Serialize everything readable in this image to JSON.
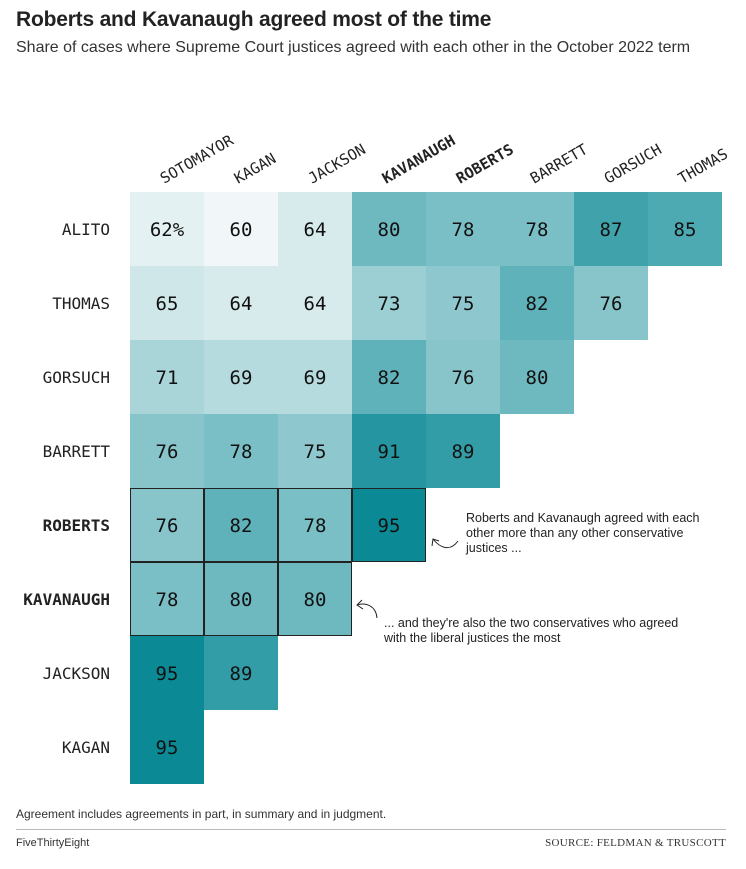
{
  "header": {
    "title": "Roberts and Kavanaugh agreed most of the time",
    "subtitle": "Share of cases where Supreme Court justices agreed with each other in the October 2022 term"
  },
  "chart_data": {
    "type": "heatmap",
    "columns": [
      "SOTOMAYOR",
      "KAGAN",
      "JACKSON",
      "KAVANAUGH",
      "ROBERTS",
      "BARRETT",
      "GORSUCH",
      "THOMAS"
    ],
    "rows": [
      "ALITO",
      "THOMAS",
      "GORSUCH",
      "BARRETT",
      "ROBERTS",
      "KAVANAUGH",
      "JACKSON",
      "KAGAN"
    ],
    "values": [
      [
        62,
        60,
        64,
        80,
        78,
        78,
        87,
        85
      ],
      [
        65,
        64,
        64,
        73,
        75,
        82,
        76,
        null
      ],
      [
        71,
        69,
        69,
        82,
        76,
        80,
        null,
        null
      ],
      [
        76,
        78,
        75,
        91,
        89,
        null,
        null,
        null
      ],
      [
        76,
        82,
        78,
        95,
        null,
        null,
        null,
        null
      ],
      [
        78,
        80,
        80,
        null,
        null,
        null,
        null,
        null
      ],
      [
        95,
        89,
        null,
        null,
        null,
        null,
        null,
        null
      ],
      [
        95,
        null,
        null,
        null,
        null,
        null,
        null,
        null
      ]
    ],
    "first_value_suffix": "%",
    "bold_labels": [
      "KAVANAUGH",
      "ROBERTS"
    ],
    "highlighted_cells": [
      [
        4,
        0
      ],
      [
        4,
        1
      ],
      [
        4,
        2
      ],
      [
        4,
        3
      ],
      [
        5,
        0
      ],
      [
        5,
        1
      ],
      [
        5,
        2
      ]
    ],
    "value_range": [
      60,
      95
    ],
    "colors": {
      "low": "#f1f7f8",
      "high": "#0b8a96",
      "highlight_border": "#222222"
    }
  },
  "annotations": {
    "roberts_kavanaugh": "Roberts and Kavanaugh agreed with each other more than any other conservative justices ...",
    "liberal_agreement": "... and they're also the two conservatives who agreed with the liberal justices the most"
  },
  "footer": {
    "note": "Agreement includes agreements in part, in summary and in judgment.",
    "brand": "FiveThirtyEight",
    "source": "SOURCE: FELDMAN & TRUSCOTT"
  }
}
